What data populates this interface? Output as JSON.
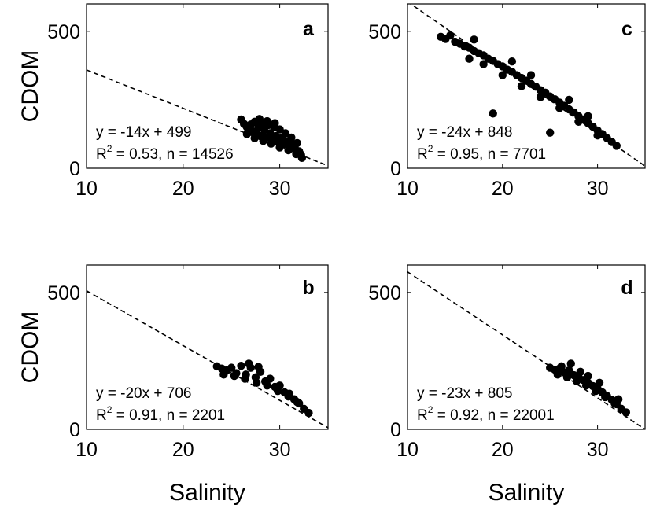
{
  "chart_data": [
    {
      "panel": "a",
      "type": "scatter",
      "xlabel": "",
      "ylabel": "CDOM",
      "xlim": [
        10,
        35
      ],
      "ylim": [
        0,
        600
      ],
      "xticks": [
        10,
        20,
        30
      ],
      "yticks": [
        0,
        500
      ],
      "fit": {
        "slope": -14,
        "intercept": 499
      },
      "equation": "y = -14x + 499",
      "r2_prefix": "R",
      "r2_sup": "2",
      "r2_rest": " = 0.53, n = 14526",
      "points": [
        [
          26.0,
          178
        ],
        [
          26.3,
          162
        ],
        [
          26.6,
          150
        ],
        [
          26.8,
          141
        ],
        [
          27.0,
          160
        ],
        [
          27.2,
          135
        ],
        [
          27.4,
          170
        ],
        [
          27.6,
          128
        ],
        [
          27.8,
          152
        ],
        [
          28.0,
          118
        ],
        [
          28.2,
          165
        ],
        [
          28.4,
          140
        ],
        [
          28.6,
          112
        ],
        [
          28.8,
          158
        ],
        [
          29.0,
          128
        ],
        [
          29.2,
          105
        ],
        [
          29.4,
          150
        ],
        [
          29.6,
          118
        ],
        [
          29.8,
          96
        ],
        [
          30.0,
          142
        ],
        [
          30.2,
          110
        ],
        [
          30.4,
          88
        ],
        [
          30.6,
          128
        ],
        [
          30.8,
          98
        ],
        [
          31.0,
          80
        ],
        [
          31.2,
          112
        ],
        [
          31.4,
          88
        ],
        [
          31.6,
          70
        ],
        [
          31.8,
          92
        ],
        [
          32.0,
          62
        ],
        [
          32.2,
          50
        ],
        [
          32.3,
          38
        ],
        [
          26.6,
          125
        ],
        [
          27.4,
          110
        ],
        [
          28.3,
          100
        ],
        [
          29.1,
          90
        ],
        [
          30.0,
          76
        ],
        [
          30.9,
          66
        ],
        [
          31.7,
          52
        ],
        [
          27.9,
          180
        ],
        [
          28.7,
          172
        ],
        [
          29.5,
          165
        ]
      ]
    },
    {
      "panel": "c",
      "type": "scatter",
      "xlabel": "",
      "ylabel": "",
      "xlim": [
        10,
        35
      ],
      "ylim": [
        0,
        600
      ],
      "xticks": [
        10,
        20,
        30
      ],
      "yticks": [
        0,
        500
      ],
      "fit": {
        "slope": -24,
        "intercept": 848
      },
      "equation": "y = -24x + 848",
      "r2_prefix": "R",
      "r2_sup": "2",
      "r2_rest": " = 0.95, n = 7701",
      "points": [
        [
          13.5,
          480
        ],
        [
          14.0,
          472
        ],
        [
          14.5,
          485
        ],
        [
          15.0,
          462
        ],
        [
          15.5,
          455
        ],
        [
          16.0,
          445
        ],
        [
          16.5,
          440
        ],
        [
          17.0,
          428
        ],
        [
          17.5,
          420
        ],
        [
          18.0,
          412
        ],
        [
          18.5,
          400
        ],
        [
          19.0,
          392
        ],
        [
          19.5,
          380
        ],
        [
          20.0,
          372
        ],
        [
          20.5,
          360
        ],
        [
          21.0,
          352
        ],
        [
          21.5,
          340
        ],
        [
          22.0,
          330
        ],
        [
          22.5,
          320
        ],
        [
          23.0,
          308
        ],
        [
          23.5,
          298
        ],
        [
          24.0,
          285
        ],
        [
          24.5,
          276
        ],
        [
          25.0,
          262
        ],
        [
          25.5,
          252
        ],
        [
          26.0,
          240
        ],
        [
          26.5,
          228
        ],
        [
          27.0,
          215
        ],
        [
          27.5,
          204
        ],
        [
          28.0,
          190
        ],
        [
          28.5,
          178
        ],
        [
          29.0,
          165
        ],
        [
          29.5,
          152
        ],
        [
          30.0,
          138
        ],
        [
          30.5,
          125
        ],
        [
          31.0,
          110
        ],
        [
          31.5,
          96
        ],
        [
          32.0,
          82
        ],
        [
          16.5,
          400
        ],
        [
          18.0,
          380
        ],
        [
          20.0,
          340
        ],
        [
          22.0,
          300
        ],
        [
          24.0,
          260
        ],
        [
          26.0,
          220
        ],
        [
          28.0,
          170
        ],
        [
          30.0,
          120
        ],
        [
          19.0,
          200
        ],
        [
          25.0,
          130
        ],
        [
          17.0,
          470
        ],
        [
          21.0,
          390
        ],
        [
          23.0,
          340
        ],
        [
          27.0,
          250
        ],
        [
          29.0,
          190
        ]
      ]
    },
    {
      "panel": "b",
      "type": "scatter",
      "xlabel": "Salinity",
      "ylabel": "CDOM",
      "xlim": [
        10,
        35
      ],
      "ylim": [
        0,
        600
      ],
      "xticks": [
        10,
        20,
        30
      ],
      "yticks": [
        0,
        500
      ],
      "fit": {
        "slope": -20,
        "intercept": 706
      },
      "equation": "y = -20x + 706",
      "r2_prefix": "R",
      "r2_sup": "2",
      "r2_rest": " = 0.91, n = 2201",
      "points": [
        [
          23.5,
          230
        ],
        [
          24.0,
          222
        ],
        [
          24.5,
          215
        ],
        [
          25.0,
          225
        ],
        [
          25.5,
          205
        ],
        [
          26.0,
          232
        ],
        [
          26.5,
          200
        ],
        [
          27.0,
          225
        ],
        [
          27.5,
          190
        ],
        [
          28.0,
          210
        ],
        [
          28.5,
          175
        ],
        [
          29.0,
          185
        ],
        [
          29.5,
          155
        ],
        [
          30.0,
          160
        ],
        [
          30.5,
          135
        ],
        [
          31.0,
          130
        ],
        [
          31.5,
          110
        ],
        [
          32.0,
          95
        ],
        [
          32.5,
          75
        ],
        [
          33.0,
          60
        ],
        [
          24.2,
          200
        ],
        [
          25.3,
          195
        ],
        [
          26.4,
          185
        ],
        [
          27.6,
          170
        ],
        [
          28.7,
          160
        ],
        [
          29.8,
          140
        ],
        [
          30.9,
          120
        ],
        [
          31.8,
          100
        ],
        [
          26.8,
          240
        ],
        [
          27.8,
          228
        ]
      ]
    },
    {
      "panel": "d",
      "type": "scatter",
      "xlabel": "Salinity",
      "ylabel": "",
      "xlim": [
        10,
        35
      ],
      "ylim": [
        0,
        600
      ],
      "xticks": [
        10,
        20,
        30
      ],
      "yticks": [
        0,
        500
      ],
      "fit": {
        "slope": -23,
        "intercept": 805
      },
      "equation": "y = -23x + 805",
      "r2_prefix": "R",
      "r2_sup": "2",
      "r2_rest": " = 0.92, n = 22001",
      "points": [
        [
          25.0,
          225
        ],
        [
          25.5,
          218
        ],
        [
          26.0,
          222
        ],
        [
          26.5,
          208
        ],
        [
          27.0,
          215
        ],
        [
          27.2,
          240
        ],
        [
          27.5,
          198
        ],
        [
          28.0,
          190
        ],
        [
          28.5,
          180
        ],
        [
          29.0,
          170
        ],
        [
          29.5,
          158
        ],
        [
          30.0,
          148
        ],
        [
          30.5,
          135
        ],
        [
          31.0,
          122
        ],
        [
          31.5,
          108
        ],
        [
          32.0,
          92
        ],
        [
          32.5,
          75
        ],
        [
          33.0,
          62
        ],
        [
          25.8,
          200
        ],
        [
          26.8,
          190
        ],
        [
          27.8,
          176
        ],
        [
          28.8,
          160
        ],
        [
          29.8,
          140
        ],
        [
          30.8,
          118
        ],
        [
          31.8,
          95
        ],
        [
          26.2,
          230
        ],
        [
          28.2,
          210
        ],
        [
          30.2,
          170
        ],
        [
          32.2,
          110
        ],
        [
          29.0,
          195
        ]
      ]
    }
  ]
}
